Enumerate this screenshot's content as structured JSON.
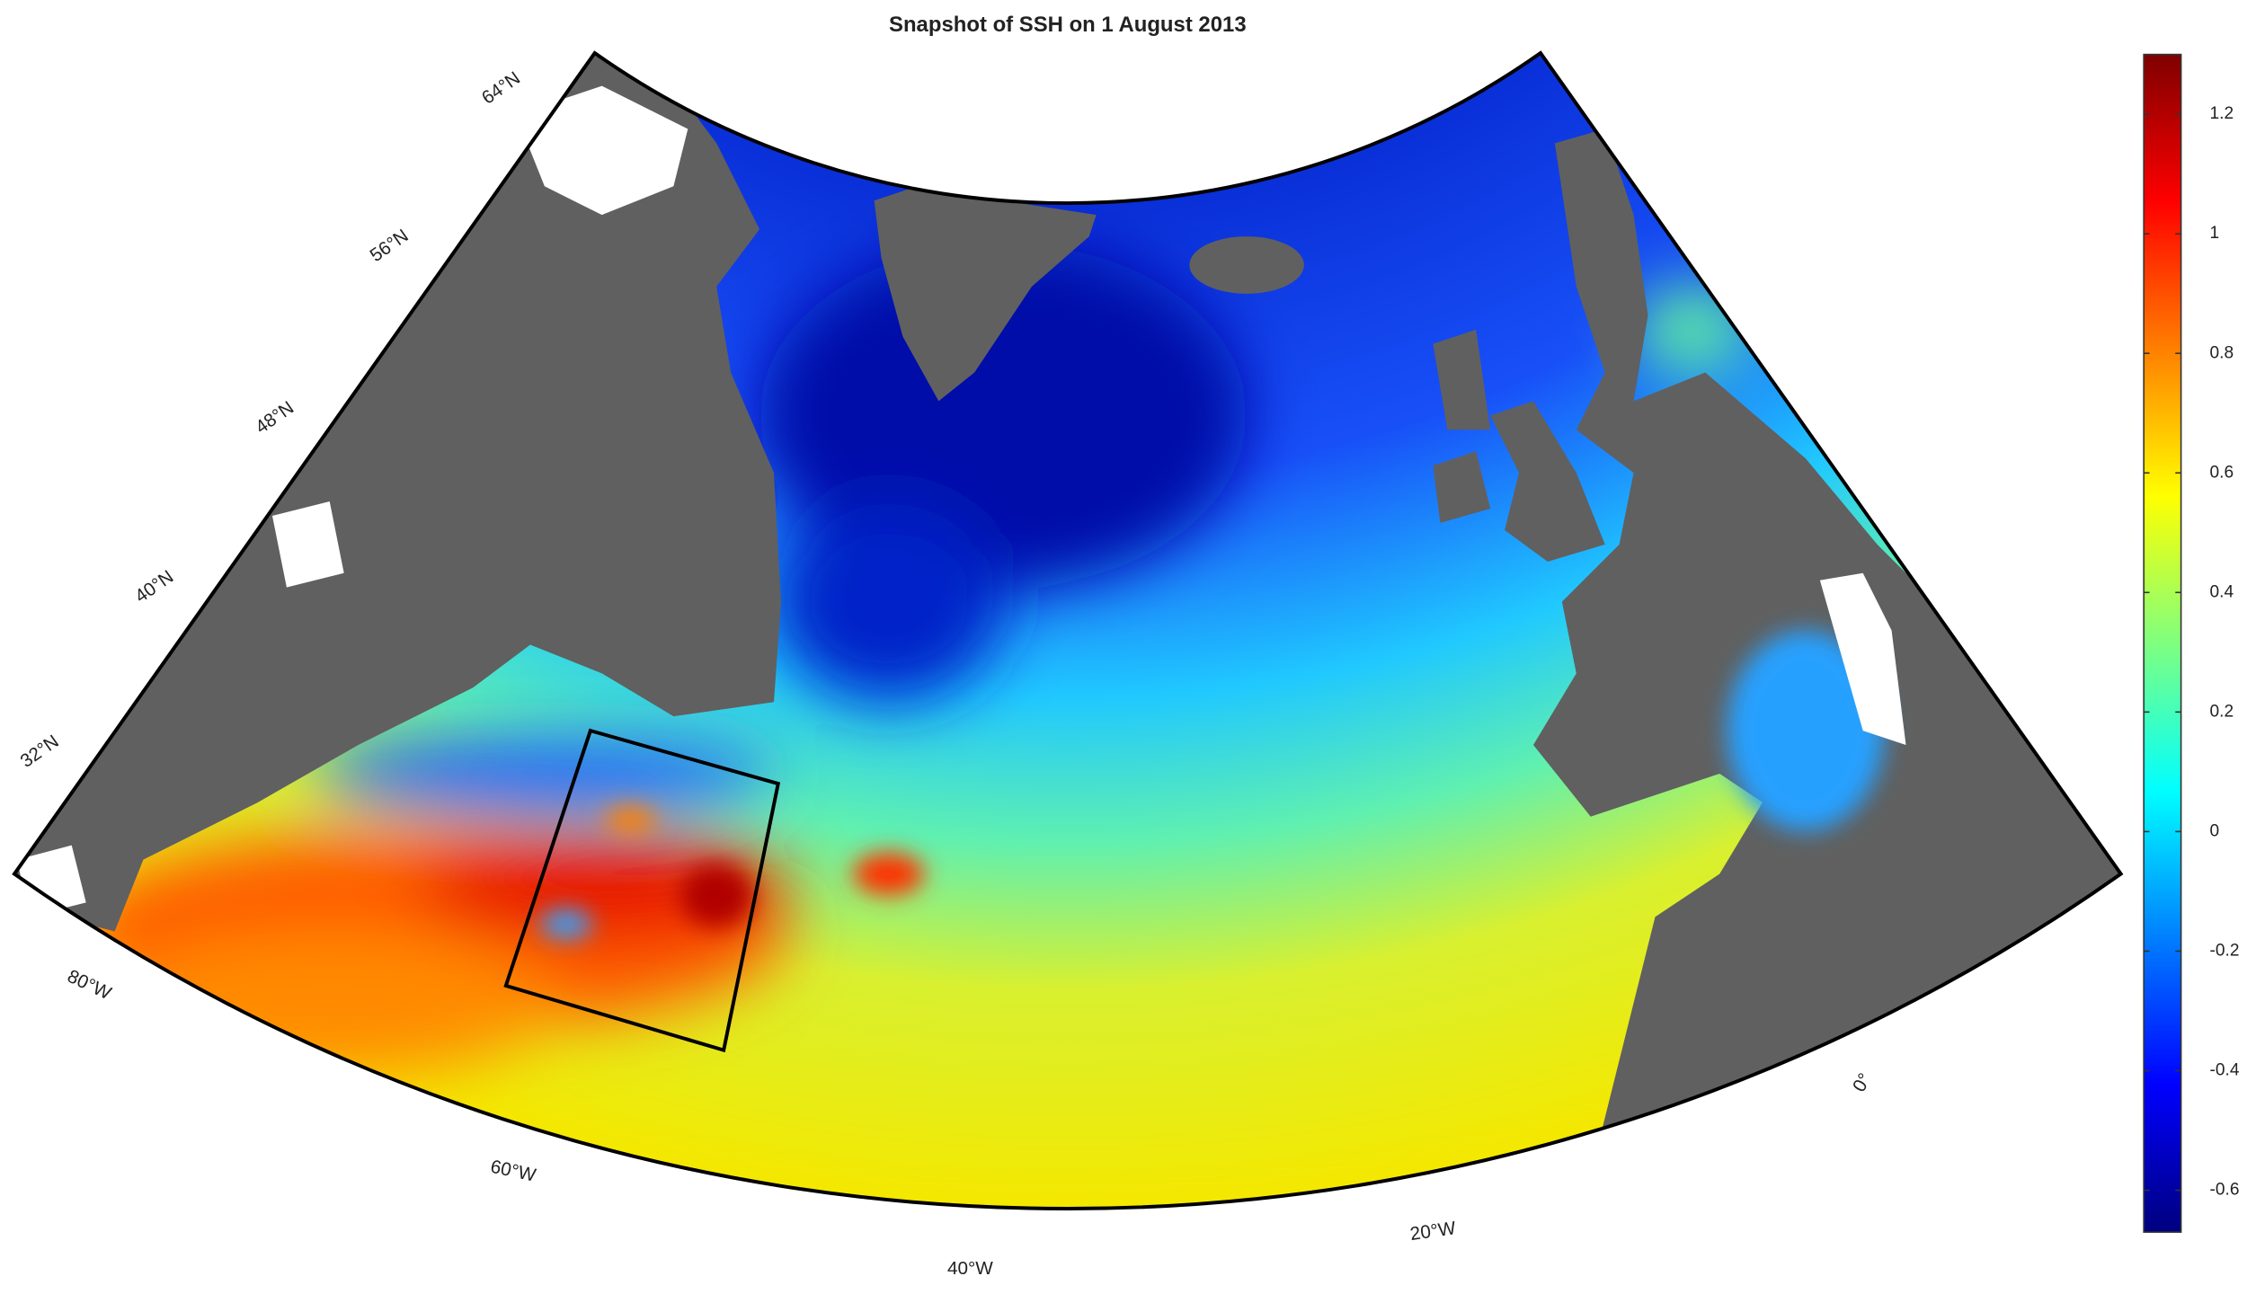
{
  "chart_data": {
    "type": "map",
    "title": "Snapshot of SSH on 1 August 2013",
    "lat_labels": [
      "64°N",
      "56°N",
      "48°N",
      "40°N",
      "32°N"
    ],
    "lon_labels": [
      "80°W",
      "60°W",
      "40°W",
      "20°W",
      "0°"
    ],
    "colorbar": {
      "lim": [
        -0.67,
        1.3
      ],
      "ticks": [
        -0.6,
        -0.4,
        -0.2,
        0,
        0.2,
        0.4,
        0.6,
        0.8,
        1,
        1.2
      ],
      "colormap": "jet"
    }
  }
}
